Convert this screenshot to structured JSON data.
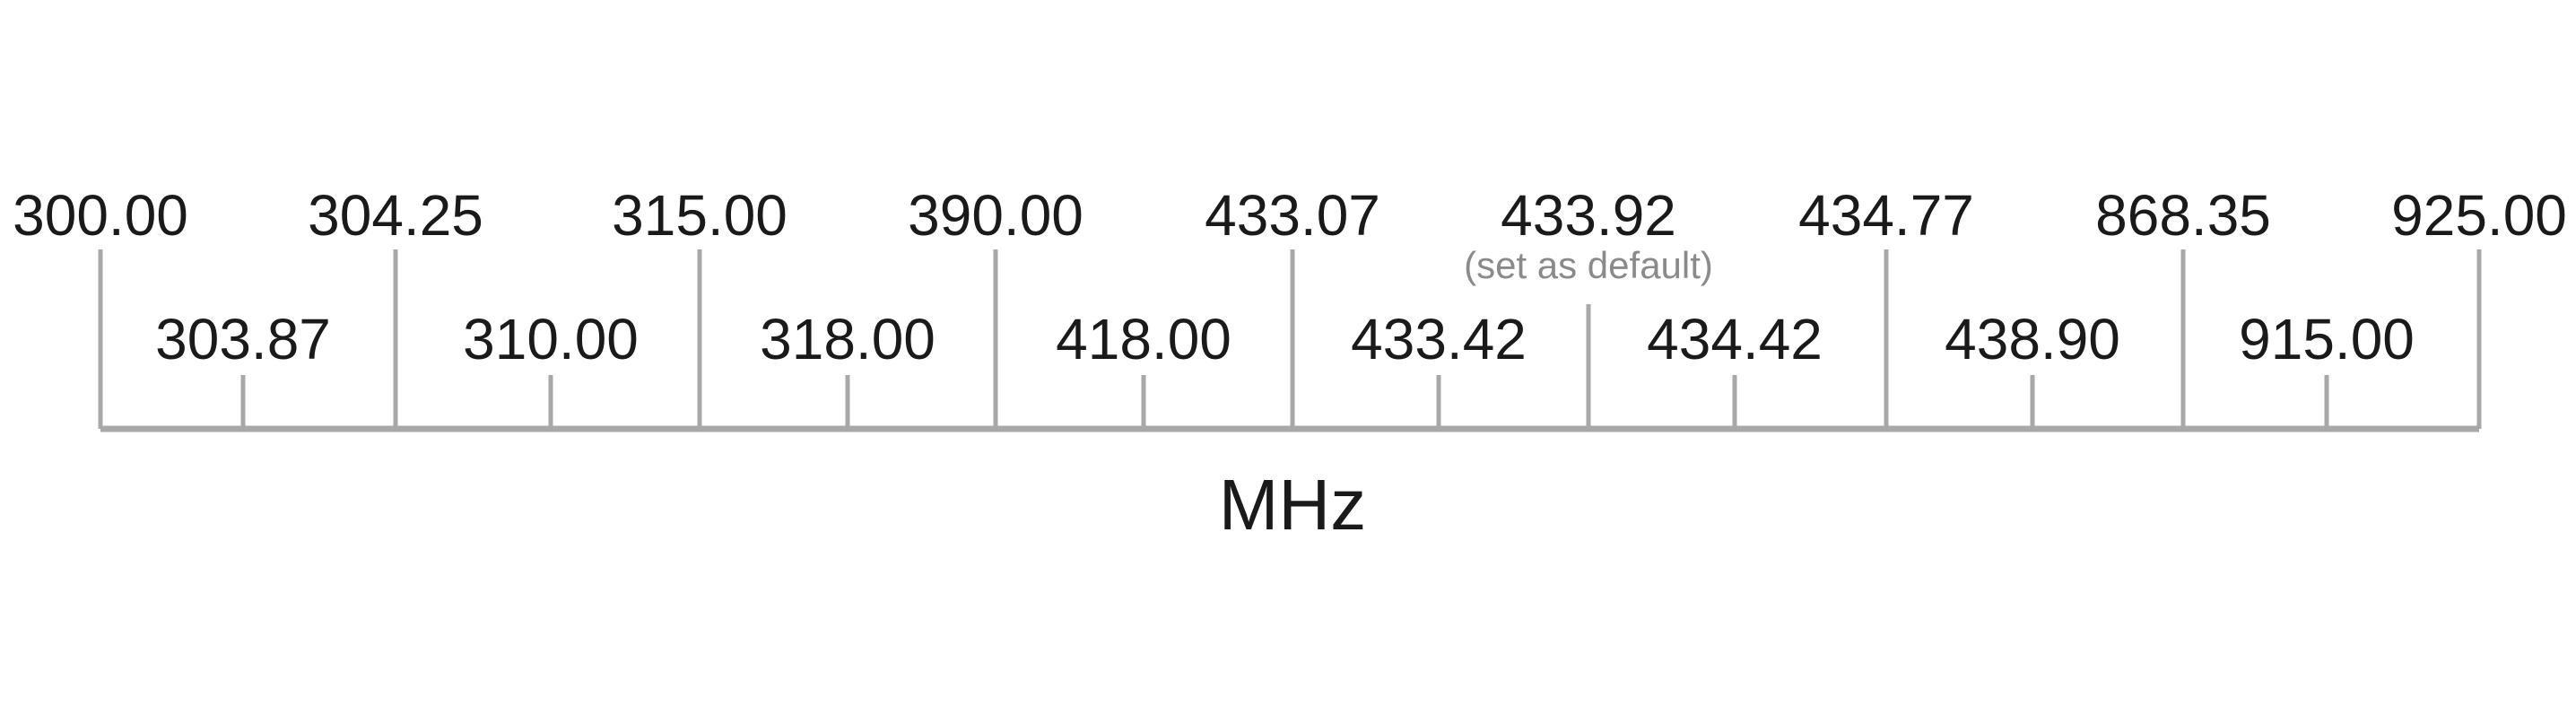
{
  "scale": {
    "unit": "MHz",
    "line_color": "#a8a8a8",
    "text_color": "#1a1a1a",
    "note_color": "#8a8a8a",
    "major_labels": [
      "300.00",
      "304.25",
      "315.00",
      "390.00",
      "433.07",
      "433.92",
      "434.77",
      "868.35",
      "925.00"
    ],
    "minor_labels": [
      "303.87",
      "310.00",
      "318.00",
      "418.00",
      "433.42",
      "434.42",
      "438.90",
      "915.00"
    ],
    "default_note": "(set as default)",
    "default_label": "433.92"
  }
}
